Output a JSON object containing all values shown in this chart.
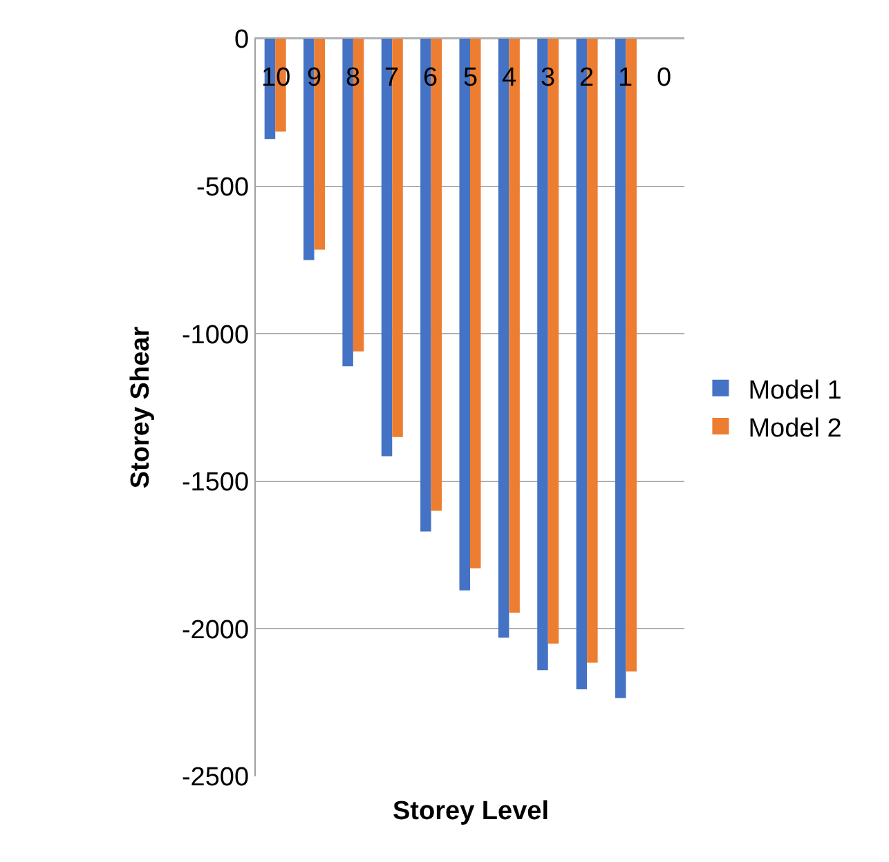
{
  "chart_data": {
    "type": "bar",
    "xlabel": "Storey Level",
    "ylabel": "Storey Shear",
    "categories": [
      "10",
      "9",
      "8",
      "7",
      "6",
      "5",
      "4",
      "3",
      "2",
      "1",
      "0"
    ],
    "series": [
      {
        "name": "Model 1",
        "color": "#4472c4",
        "values": [
          -340,
          -750,
          -1110,
          -1415,
          -1670,
          -1870,
          -2030,
          -2140,
          -2205,
          -2235,
          null
        ]
      },
      {
        "name": "Model 2",
        "color": "#ed7d31",
        "values": [
          -315,
          -715,
          -1060,
          -1350,
          -1600,
          -1795,
          -1945,
          -2050,
          -2115,
          -2145,
          null
        ]
      }
    ],
    "ylim": [
      -2500,
      0
    ],
    "yticks": [
      0,
      -500,
      -1000,
      -1500,
      -2000,
      -2500
    ],
    "grid": "y",
    "legend": "right"
  }
}
